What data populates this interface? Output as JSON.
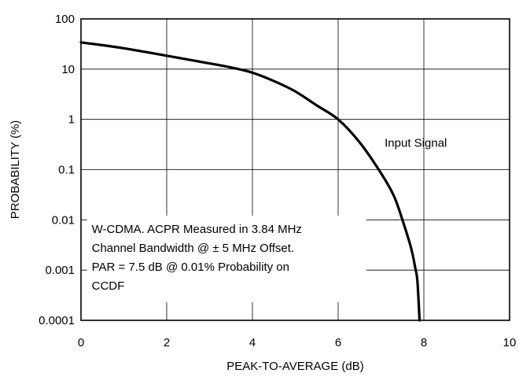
{
  "chart_data": {
    "type": "line",
    "title": "",
    "xlabel": "PEAK-TO-AVERAGE (dB)",
    "ylabel": "PROBABILITY (%)",
    "xlim": [
      0,
      10
    ],
    "ylim": [
      0.0001,
      100
    ],
    "yscale": "log",
    "grid": true,
    "x_ticks": [
      0,
      2,
      4,
      6,
      8,
      10
    ],
    "x_tick_labels": [
      "0",
      "2",
      "4",
      "6",
      "8",
      "10"
    ],
    "y_ticks": [
      0.0001,
      0.001,
      0.01,
      0.1,
      1,
      10,
      100
    ],
    "y_tick_labels": [
      "0.0001",
      "0.001",
      "0.01",
      "0.1",
      "1",
      "10",
      "100"
    ],
    "series": [
      {
        "name": "Input Signal",
        "color": "#000000",
        "x": [
          0,
          0.5,
          1.0,
          1.5,
          2.0,
          2.5,
          3.0,
          3.5,
          4.0,
          4.5,
          5.0,
          5.5,
          6.0,
          6.5,
          7.0,
          7.3,
          7.5,
          7.7,
          7.8,
          7.85,
          7.9
        ],
        "y": [
          34,
          30,
          26,
          22,
          18.5,
          15.5,
          13,
          10.8,
          8.5,
          5.8,
          3.6,
          1.9,
          1.0,
          0.35,
          0.085,
          0.03,
          0.01,
          0.0028,
          0.0011,
          0.0006,
          0.0001
        ]
      }
    ],
    "annotations": [
      {
        "text": "Input Signal",
        "x": 6.7,
        "y": 1.0
      },
      {
        "lines": [
          "W-CDMA. ACPR Measured in 3.84 MHz",
          "Channel Bandwidth @ ± 5 MHz Offset.",
          "PAR = 7.5 dB @ 0.01% Probability on",
          "CCDF"
        ],
        "x": 0.25,
        "y": 0.0055
      }
    ]
  }
}
